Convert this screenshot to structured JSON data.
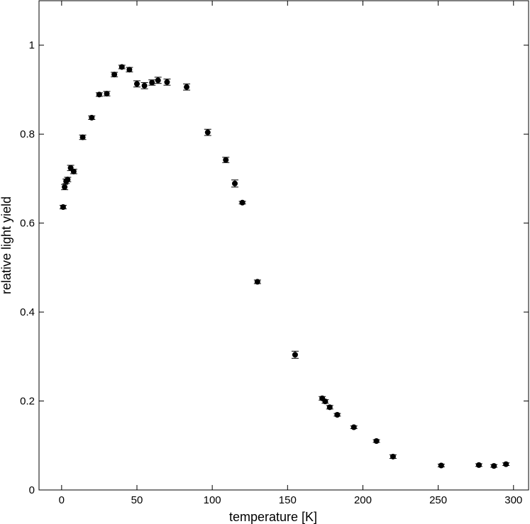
{
  "chart_data": {
    "type": "scatter",
    "title": "",
    "xlabel": "temperature [K]",
    "ylabel": "relative light yield",
    "xlim": [
      -15,
      310
    ],
    "ylim": [
      0,
      1.1
    ],
    "xticks": [
      0,
      50,
      100,
      150,
      200,
      250,
      300
    ],
    "yticks": [
      0,
      0.2,
      0.4,
      0.6,
      0.8,
      1
    ],
    "ytick_labels": [
      "0",
      "0.2",
      "0.4",
      "0.6",
      "0.8",
      "1"
    ],
    "grid": false,
    "legend": "none",
    "error_bars": true,
    "marker_color": "#000000",
    "series": [
      {
        "points": [
          {
            "x": 1,
            "y": 0.636,
            "err": 0.004
          },
          {
            "x": 2,
            "y": 0.681,
            "err": 0.006
          },
          {
            "x": 3,
            "y": 0.694,
            "err": 0.005
          },
          {
            "x": 4,
            "y": 0.698,
            "err": 0.005
          },
          {
            "x": 6,
            "y": 0.724,
            "err": 0.006
          },
          {
            "x": 8,
            "y": 0.716,
            "err": 0.005
          },
          {
            "x": 14,
            "y": 0.793,
            "err": 0.005
          },
          {
            "x": 20,
            "y": 0.837,
            "err": 0.004
          },
          {
            "x": 25,
            "y": 0.889,
            "err": 0.004
          },
          {
            "x": 30,
            "y": 0.891,
            "err": 0.005
          },
          {
            "x": 35,
            "y": 0.934,
            "err": 0.005
          },
          {
            "x": 40,
            "y": 0.951,
            "err": 0.004
          },
          {
            "x": 45,
            "y": 0.945,
            "err": 0.005
          },
          {
            "x": 50,
            "y": 0.913,
            "err": 0.007
          },
          {
            "x": 55,
            "y": 0.909,
            "err": 0.007
          },
          {
            "x": 60,
            "y": 0.916,
            "err": 0.006
          },
          {
            "x": 64,
            "y": 0.921,
            "err": 0.007
          },
          {
            "x": 70,
            "y": 0.917,
            "err": 0.007
          },
          {
            "x": 83,
            "y": 0.906,
            "err": 0.007
          },
          {
            "x": 97,
            "y": 0.804,
            "err": 0.007
          },
          {
            "x": 109,
            "y": 0.742,
            "err": 0.006
          },
          {
            "x": 115,
            "y": 0.689,
            "err": 0.008
          },
          {
            "x": 120,
            "y": 0.646,
            "err": 0.003
          },
          {
            "x": 130,
            "y": 0.468,
            "err": 0.004
          },
          {
            "x": 155,
            "y": 0.304,
            "err": 0.008
          },
          {
            "x": 173,
            "y": 0.206,
            "err": 0.004
          },
          {
            "x": 175,
            "y": 0.199,
            "err": 0.004
          },
          {
            "x": 178,
            "y": 0.186,
            "err": 0.004
          },
          {
            "x": 183,
            "y": 0.169,
            "err": 0.003
          },
          {
            "x": 194,
            "y": 0.141,
            "err": 0.003
          },
          {
            "x": 209,
            "y": 0.11,
            "err": 0.003
          },
          {
            "x": 220,
            "y": 0.075,
            "err": 0.004
          },
          {
            "x": 252,
            "y": 0.055,
            "err": 0.003
          },
          {
            "x": 277,
            "y": 0.056,
            "err": 0.003
          },
          {
            "x": 287,
            "y": 0.054,
            "err": 0.003
          },
          {
            "x": 295,
            "y": 0.058,
            "err": 0.003
          }
        ]
      }
    ]
  }
}
